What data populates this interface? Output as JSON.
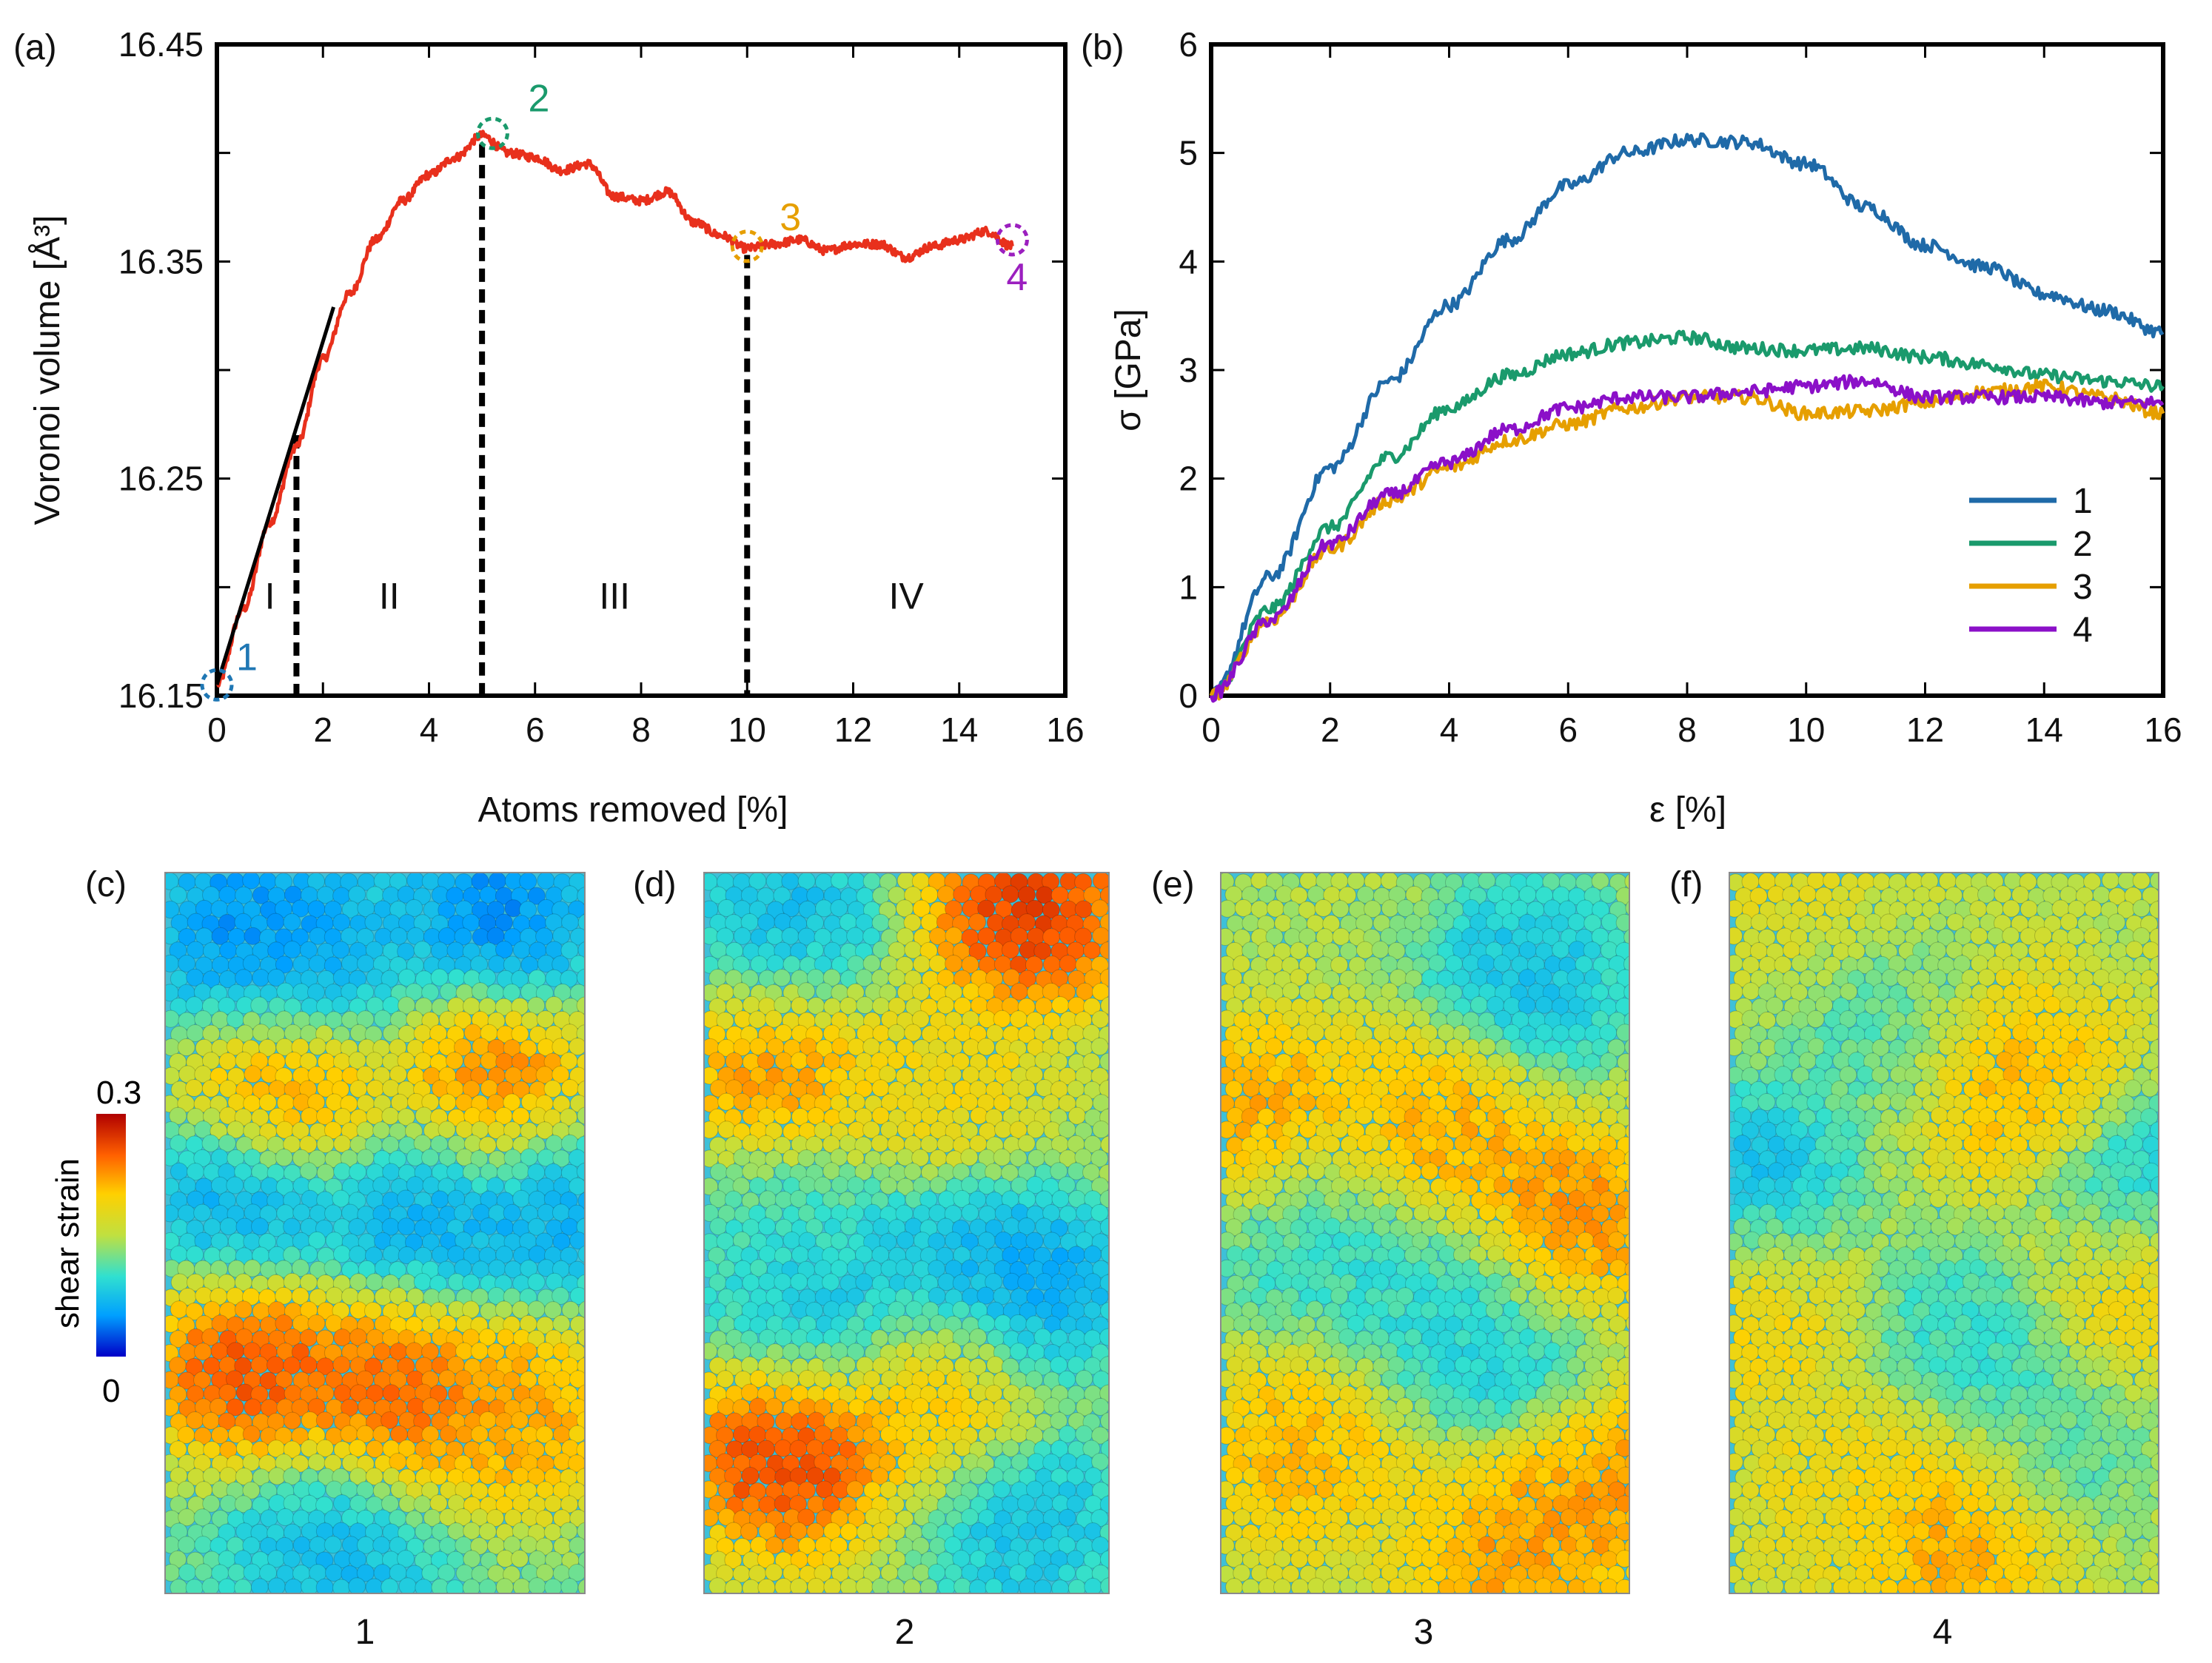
{
  "chart_data": [
    {
      "panel": "(a)",
      "type": "line",
      "title": "",
      "xlabel": "Atoms removed [%]",
      "ylabel": "Voronoi volume [Å³]",
      "xlim": [
        0,
        16
      ],
      "ylim": [
        16.15,
        16.45
      ],
      "xticks": [
        "0",
        "2",
        "4",
        "6",
        "8",
        "10",
        "12",
        "14",
        "16"
      ],
      "yticks": [
        "16.15",
        "16.25",
        "16.35",
        "16.45"
      ],
      "series": [
        {
          "name": "Voronoi volume",
          "color": "#e8301c",
          "x": [
            0,
            0.5,
            1.0,
            1.5,
            2.0,
            2.5,
            3.0,
            3.5,
            4.0,
            4.5,
            5.0,
            5.5,
            6.0,
            6.5,
            7.0,
            7.5,
            8.0,
            8.5,
            9.0,
            9.5,
            10.0,
            10.5,
            11.0,
            11.5,
            12.0,
            12.5,
            13.0,
            13.5,
            14.0,
            14.5,
            15.0
          ],
          "y": [
            16.155,
            16.19,
            16.23,
            16.265,
            16.305,
            16.335,
            16.36,
            16.378,
            16.39,
            16.398,
            16.408,
            16.4,
            16.398,
            16.392,
            16.395,
            16.38,
            16.378,
            16.382,
            16.368,
            16.362,
            16.356,
            16.358,
            16.36,
            16.355,
            16.358,
            16.358,
            16.352,
            16.357,
            16.36,
            16.364,
            16.357
          ]
        },
        {
          "name": "linear fit",
          "color": "#000000",
          "x": [
            0,
            2.2
          ],
          "y": [
            16.155,
            16.329
          ]
        }
      ],
      "dividers_x": [
        1.5,
        5.0,
        10.0
      ],
      "regions": [
        {
          "label": "I",
          "x": 1.0
        },
        {
          "label": "II",
          "x": 3.25
        },
        {
          "label": "III",
          "x": 7.5
        },
        {
          "label": "IV",
          "x": 13.0
        }
      ],
      "markers": [
        {
          "label": "1",
          "x": 0,
          "y": 16.155,
          "color": "#1f77b4"
        },
        {
          "label": "2",
          "x": 5.2,
          "y": 16.409,
          "color": "#1a9a6c"
        },
        {
          "label": "3",
          "x": 10.0,
          "y": 16.357,
          "color": "#e69f00"
        },
        {
          "label": "4",
          "x": 15.0,
          "y": 16.36,
          "color": "#9b1fbf"
        }
      ]
    },
    {
      "panel": "(b)",
      "type": "line",
      "title": "",
      "xlabel": "ε [%]",
      "ylabel": "σ [GPa]",
      "xlim": [
        0,
        16
      ],
      "ylim": [
        0,
        6
      ],
      "xticks": [
        "0",
        "2",
        "4",
        "6",
        "8",
        "10",
        "12",
        "14",
        "16"
      ],
      "yticks": [
        "0",
        "1",
        "2",
        "3",
        "4",
        "5",
        "6"
      ],
      "legend_position": "right",
      "series": [
        {
          "name": "1",
          "color": "#1f6aa8",
          "x": [
            0,
            1,
            2,
            3,
            4,
            5,
            6,
            7,
            8,
            9,
            10,
            11,
            12,
            13,
            14,
            15,
            16
          ],
          "y": [
            0,
            1.1,
            2.1,
            2.9,
            3.6,
            4.2,
            4.7,
            5.0,
            5.12,
            5.1,
            4.9,
            4.5,
            4.15,
            3.95,
            3.7,
            3.55,
            3.35
          ]
        },
        {
          "name": "2",
          "color": "#1a9a6c",
          "x": [
            0,
            1,
            2,
            3,
            4,
            5,
            6,
            7,
            8,
            9,
            10,
            11,
            12,
            13,
            14,
            15,
            16
          ],
          "y": [
            0,
            0.8,
            1.55,
            2.2,
            2.65,
            2.95,
            3.15,
            3.25,
            3.3,
            3.2,
            3.18,
            3.2,
            3.12,
            3.05,
            2.95,
            2.9,
            2.85
          ]
        },
        {
          "name": "3",
          "color": "#e69f00",
          "x": [
            0,
            1,
            2,
            3,
            4,
            5,
            6,
            7,
            8,
            9,
            10,
            11,
            12,
            13,
            14,
            15,
            16
          ],
          "y": [
            0,
            0.7,
            1.35,
            1.8,
            2.1,
            2.35,
            2.5,
            2.65,
            2.75,
            2.75,
            2.6,
            2.62,
            2.7,
            2.8,
            2.85,
            2.75,
            2.6
          ]
        },
        {
          "name": "4",
          "color": "#8b10c8",
          "x": [
            0,
            1,
            2,
            3,
            4,
            5,
            6,
            7,
            8,
            9,
            10,
            11,
            12,
            13,
            14,
            15,
            16
          ],
          "y": [
            0,
            0.7,
            1.4,
            1.85,
            2.15,
            2.45,
            2.65,
            2.75,
            2.75,
            2.8,
            2.85,
            2.9,
            2.75,
            2.75,
            2.75,
            2.7,
            2.7
          ]
        }
      ]
    }
  ],
  "snapshots": [
    {
      "panel": "(c)",
      "label": "1"
    },
    {
      "panel": "(d)",
      "label": "2"
    },
    {
      "panel": "(e)",
      "label": "3"
    },
    {
      "panel": "(f)",
      "label": "4"
    }
  ],
  "colorbar": {
    "title": "shear strain",
    "max": "0.3",
    "min": "0",
    "colors": [
      "#0000c8",
      "#00a0ff",
      "#30e0d0",
      "#c0e040",
      "#ffd000",
      "#ff6000",
      "#b00000"
    ]
  }
}
